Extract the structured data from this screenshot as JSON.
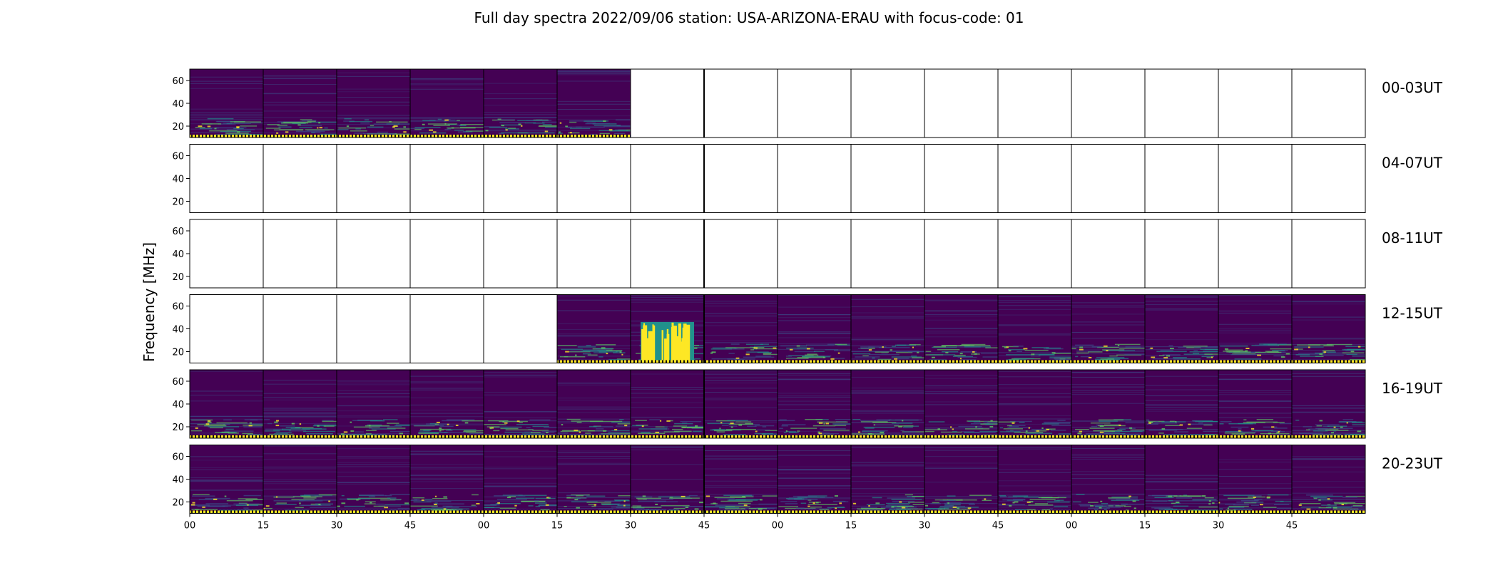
{
  "chart_data": {
    "type": "heatmap",
    "title": "Full day spectra 2022/09/06 station: USA-ARIZONA-ERAU with focus-code: 01",
    "ylabel": "Frequency [MHz]",
    "yticks": [
      20,
      40,
      60
    ],
    "ylim": [
      10,
      70
    ],
    "xticks": [
      "00",
      "15",
      "30",
      "45",
      "00",
      "15",
      "30",
      "45",
      "00",
      "15",
      "30",
      "45",
      "00",
      "15",
      "30",
      "45"
    ],
    "panels_per_row": 16,
    "panel_minutes": 15,
    "colormap": [
      "#440154",
      "#3b528b",
      "#21918c",
      "#5ec962",
      "#fde725"
    ],
    "rows": [
      {
        "label": "00-03UT",
        "data_panels": [
          0,
          1,
          2,
          3,
          4,
          5
        ],
        "burst_panels": []
      },
      {
        "label": "04-07UT",
        "data_panels": [],
        "burst_panels": []
      },
      {
        "label": "08-11UT",
        "data_panels": [],
        "burst_panels": []
      },
      {
        "label": "12-15UT",
        "data_panels": [
          5,
          6,
          7,
          8,
          9,
          10,
          11,
          12,
          13,
          14,
          15
        ],
        "burst_panels": [
          6
        ]
      },
      {
        "label": "16-19UT",
        "data_panels": [
          0,
          1,
          2,
          3,
          4,
          5,
          6,
          7,
          8,
          9,
          10,
          11,
          12,
          13,
          14,
          15
        ],
        "burst_panels": []
      },
      {
        "label": "20-23UT",
        "data_panels": [
          0,
          1,
          2,
          3,
          4,
          5,
          6,
          7,
          8,
          9,
          10,
          11,
          12,
          13,
          14,
          15
        ],
        "burst_panels": []
      }
    ]
  }
}
